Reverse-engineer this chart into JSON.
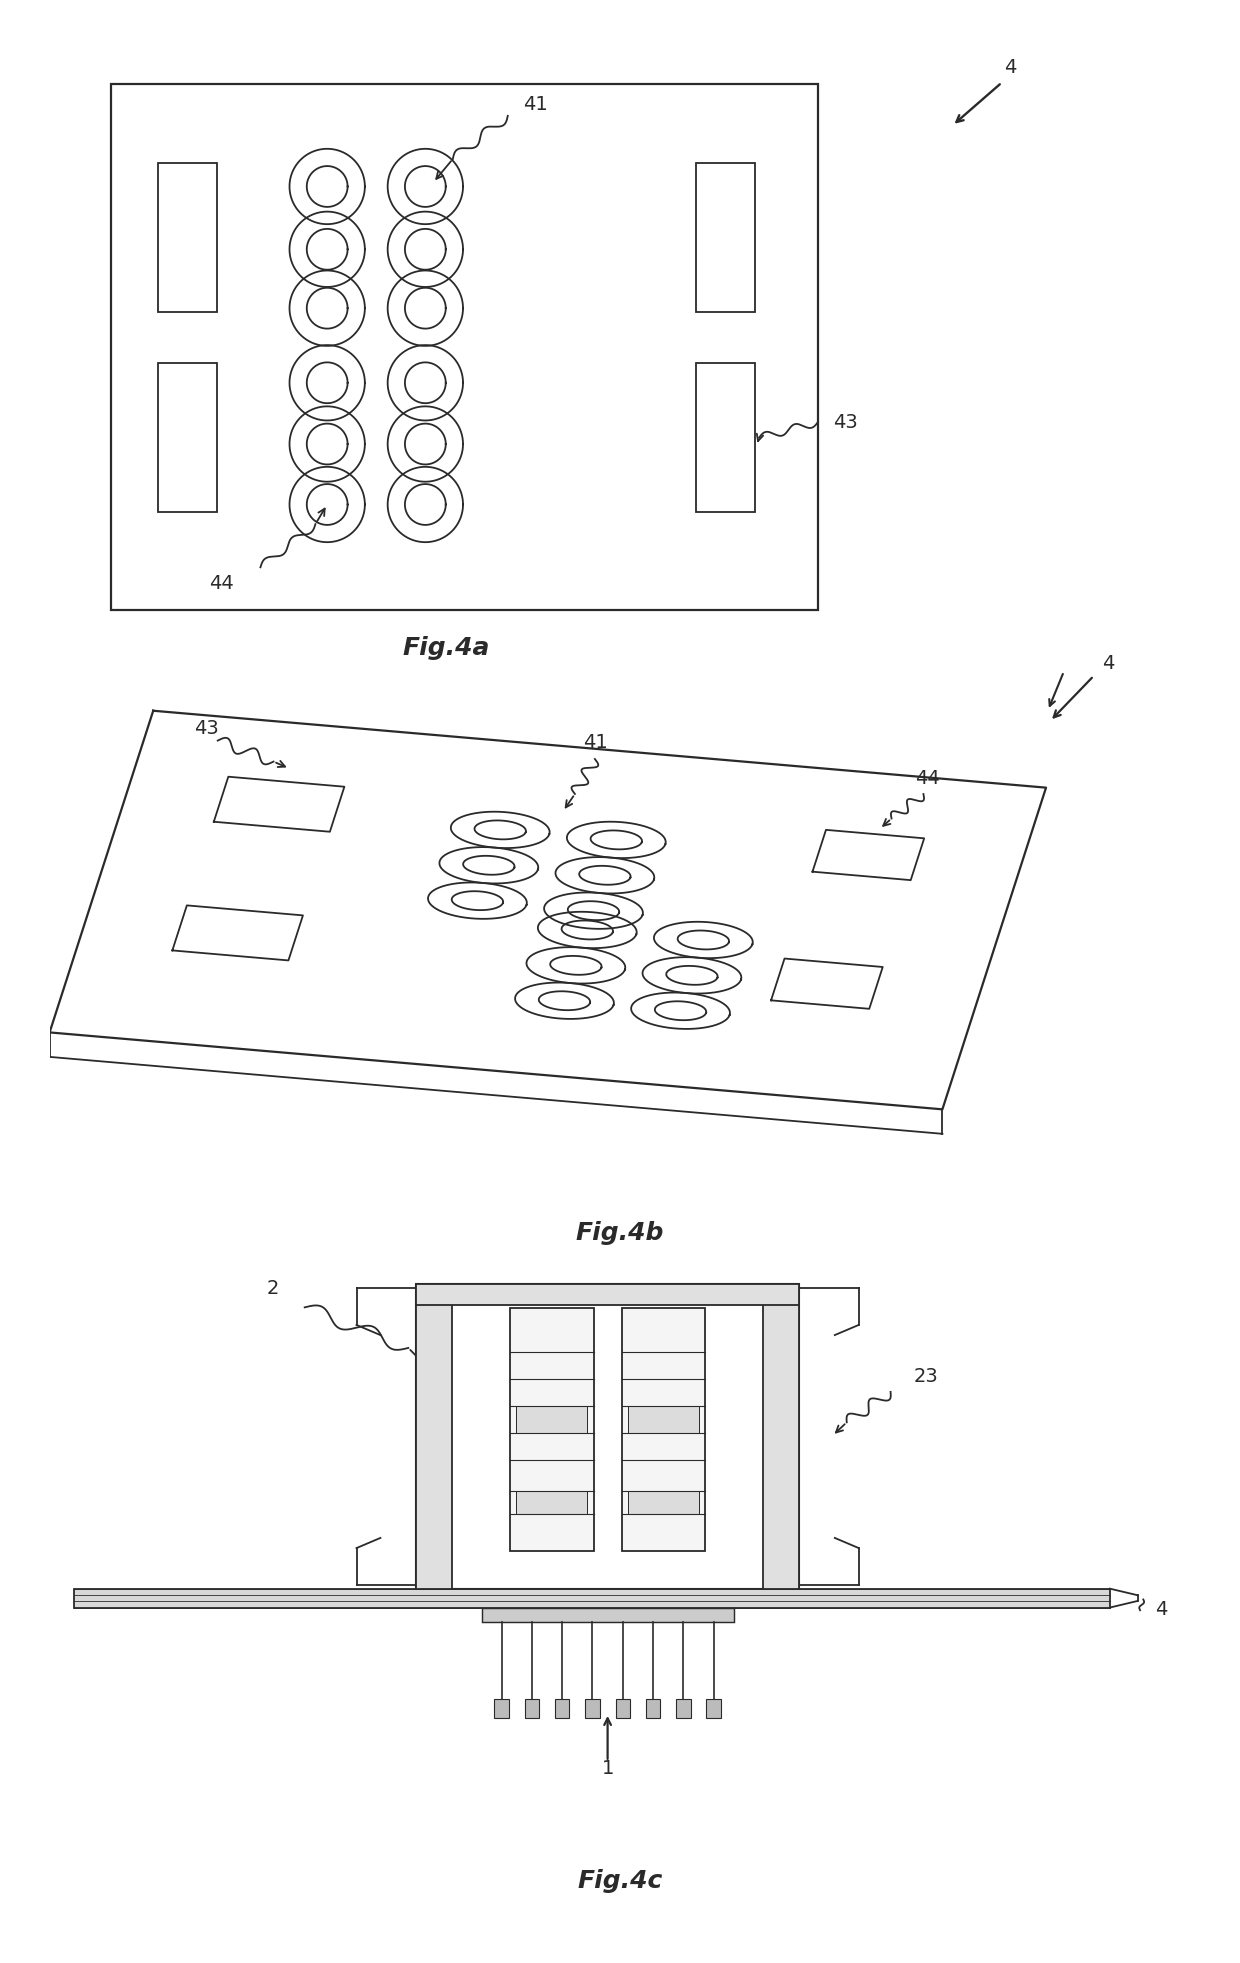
{
  "fig_title_a": "Fig.4a",
  "fig_title_b": "Fig.4b",
  "fig_title_c": "Fig.4c",
  "label_4": "4",
  "label_41": "41",
  "label_43": "43",
  "label_44": "44",
  "label_2": "2",
  "label_23": "23",
  "label_1": "1",
  "bg_color": "#ffffff",
  "line_color": "#2a2a2a",
  "line_width": 1.3,
  "font_size_label": 14,
  "font_size_title": 18
}
